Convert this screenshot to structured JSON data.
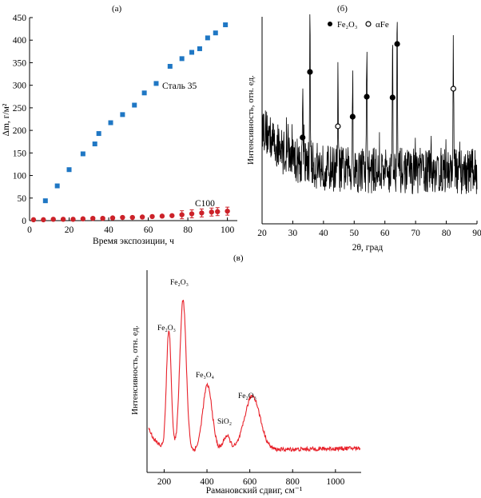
{
  "chart_data": [
    {
      "panel": "(а)",
      "type": "scatter",
      "xlabel": "Время экспозиции, ч",
      "ylabel": "Δm, г/м²",
      "xlim": [
        0,
        105
      ],
      "ylim": [
        0,
        450
      ],
      "xticks": [
        0,
        20,
        40,
        60,
        80,
        100
      ],
      "yticks": [
        0,
        50,
        100,
        150,
        200,
        250,
        300,
        350,
        400,
        450
      ],
      "series": [
        {
          "name": "Сталь 35",
          "color": "#1f77c4",
          "marker": "square",
          "x": [
            8,
            14,
            20,
            27,
            33,
            35,
            41,
            47,
            53,
            58,
            64,
            71,
            77,
            82,
            86,
            90,
            94,
            99
          ],
          "y": [
            44,
            77,
            113,
            148,
            170,
            193,
            217,
            235,
            256,
            283,
            304,
            342,
            359,
            373,
            381,
            405,
            416,
            434
          ]
        },
        {
          "name": "С100",
          "color": "#cc2229",
          "marker": "circle",
          "x": [
            2,
            7,
            12,
            17,
            22,
            27,
            32,
            37,
            42,
            47,
            52,
            57,
            62,
            67,
            72,
            77,
            82,
            87,
            92,
            95,
            100
          ],
          "y": [
            2,
            2,
            3,
            3,
            3,
            4,
            5,
            5,
            6,
            7,
            7,
            8,
            9,
            10,
            11,
            13,
            15,
            17,
            19,
            20,
            21
          ]
        }
      ]
    },
    {
      "panel": "(б)",
      "type": "line",
      "xlabel": "2θ, град",
      "ylabel": "Интенсивность, отн. ед.",
      "xlim": [
        20,
        90
      ],
      "xticks": [
        20,
        30,
        40,
        50,
        60,
        70,
        80,
        90
      ],
      "legend": [
        "Fe₂O₃",
        "αFe"
      ],
      "peaks": [
        {
          "x": 33.2,
          "phase": "Fe₂O₃"
        },
        {
          "x": 35.6,
          "phase": "Fe₂O₃"
        },
        {
          "x": 44.7,
          "phase": "αFe"
        },
        {
          "x": 49.5,
          "phase": "Fe₂O₃"
        },
        {
          "x": 54.1,
          "phase": "Fe₂O₃"
        },
        {
          "x": 62.5,
          "phase": "Fe₂O₃"
        },
        {
          "x": 64.0,
          "phase": "Fe₂O₃"
        },
        {
          "x": 82.3,
          "phase": "αFe"
        }
      ]
    },
    {
      "panel": "(в)",
      "type": "line",
      "xlabel": "Рамановский сдвиг, см⁻¹",
      "ylabel": "Интенсивность, отн. ед.",
      "xlim": [
        120,
        1120
      ],
      "xticks": [
        200,
        400,
        600,
        800,
        1000
      ],
      "color": "#e8212a",
      "annotations": [
        {
          "x": 222,
          "label": "Fe₂O₃"
        },
        {
          "x": 288,
          "label": "Fe₂O₃"
        },
        {
          "x": 402,
          "label": "Fe₃O₄"
        },
        {
          "x": 492,
          "label": "SiO₂"
        },
        {
          "x": 612,
          "label": "Fe₂O₃"
        }
      ]
    }
  ],
  "text": {
    "panel_a": "(а)",
    "panel_b": "(б)",
    "panel_c": "(в)",
    "a_xlabel": "Время экспозиции, ч",
    "a_ylabel": "Δm, г/м²",
    "a_series1": "Сталь 35",
    "a_series2": "С100",
    "b_xlabel": "2θ, град",
    "b_ylabel": "Интенсивность, отн. ед.",
    "b_legend1": "Fe₂O₃",
    "b_legend2": "αFe",
    "c_xlabel": "Рамановский сдвиг, см⁻¹",
    "c_ylabel": "Интенсивность, отн. ед.",
    "c_ann1": "Fe₂O₃",
    "c_ann2": "Fe₂O₃",
    "c_ann3": "Fe₃O₄",
    "c_ann4": "SiO₂",
    "c_ann5": "Fe₂O₃"
  }
}
